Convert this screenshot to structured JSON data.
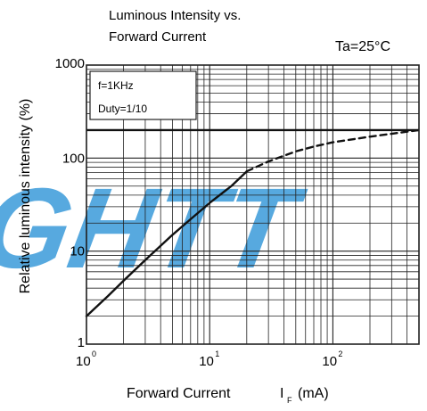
{
  "chart_data": {
    "type": "line",
    "title_line1": "Luminous Intensity vs.",
    "title_line2": "Forward Current",
    "condition": "Ta=25°C",
    "xlabel_text": "Forward Current",
    "xlabel_symbol": "I",
    "xlabel_subscript": "F",
    "xlabel_unit": "(mA)",
    "ylabel": "Relative luminous intensity (%)",
    "x_scale": "log",
    "y_scale": "log",
    "xlim": [
      1,
      500
    ],
    "ylim": [
      1,
      1000
    ],
    "x_ticks": [
      {
        "base": "10",
        "exp": "0",
        "value": 1
      },
      {
        "base": "10",
        "exp": "1",
        "value": 10
      },
      {
        "base": "10",
        "exp": "2",
        "value": 100
      }
    ],
    "y_ticks": [
      {
        "label": "1",
        "value": 1
      },
      {
        "label": "10",
        "value": 10
      },
      {
        "label": "100",
        "value": 100
      },
      {
        "label": "1000",
        "value": 1000
      }
    ],
    "annotation": [
      "f=1KHz",
      "Duty=1/10"
    ],
    "grid": true,
    "reference_line_y": 200,
    "series": [
      {
        "style": "solid",
        "x": [
          1,
          1.5,
          2,
          3,
          5,
          7,
          10,
          15,
          20
        ],
        "y": [
          2,
          3.3,
          4.8,
          8,
          15,
          22,
          33,
          50,
          72
        ]
      },
      {
        "style": "dashed",
        "x": [
          20,
          30,
          50,
          70,
          100,
          200,
          500
        ],
        "y": [
          72,
          92,
          118,
          133,
          148,
          170,
          200
        ]
      }
    ],
    "colors": {
      "line": "#111111",
      "grid": "#222222",
      "watermark": "#3a9ad9"
    }
  }
}
